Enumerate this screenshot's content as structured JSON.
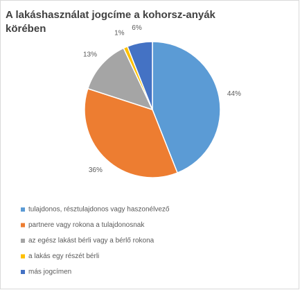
{
  "chart_data": {
    "type": "pie",
    "title_lines": [
      "A lakáshasználat jogcíme a kohorsz-anyák",
      "körében"
    ],
    "categories": [
      "tulajdonos, résztulajdonos vagy haszonélvező",
      "partnere vagy rokona a tulajdonosnak",
      "az egész lakást bérli vagy a bérlő rokona",
      "a lakás egy részét bérli",
      "más jogcímen"
    ],
    "values": [
      44,
      36,
      13,
      1,
      6
    ],
    "value_labels": [
      "44%",
      "36%",
      "13%",
      "1%",
      "6%"
    ],
    "colors": [
      "#5b9bd5",
      "#ed7d31",
      "#a5a5a5",
      "#ffc000",
      "#4472c4"
    ],
    "legend": "bottom"
  }
}
